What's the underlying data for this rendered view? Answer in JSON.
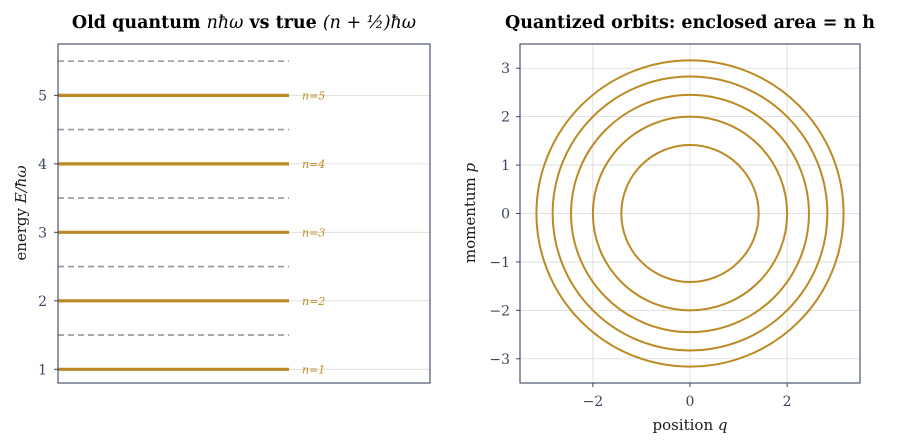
{
  "colors": {
    "gold": "#bc8a24",
    "dash": "#969696",
    "spine": "#3b4560"
  },
  "chart_data": [
    {
      "type": "line",
      "title": "Old quantum nħω vs true (n + ½)ħω",
      "title_text": "Old quantum ",
      "title_math_1": "nħω",
      "title_vs": " vs true ",
      "title_math_2": "(n + ½)ħω",
      "ylabel": "energy",
      "ylabel_math": "E/ħω",
      "xlabel": "",
      "ylim": [
        0.8,
        5.75
      ],
      "yticks": [
        "1",
        "2",
        "3",
        "4",
        "5"
      ],
      "grid": "horizontal",
      "old_quantum_levels": [
        1,
        2,
        3,
        4,
        5
      ],
      "level_labels": [
        "n=1",
        "n=2",
        "n=3",
        "n=4",
        "n=5"
      ],
      "true_levels": [
        1.5,
        2.5,
        3.5,
        4.5,
        5.5
      ]
    },
    {
      "type": "line",
      "title": "Quantized orbits: enclosed area = n h",
      "xlabel": "position",
      "xlabel_math": "q",
      "ylabel": "momentum",
      "ylabel_math": "p",
      "xlim": [
        -3.5,
        3.5
      ],
      "ylim": [
        -3.5,
        3.5
      ],
      "xticks": [
        "−2",
        "0",
        "2"
      ],
      "yticks": [
        "−3",
        "−2",
        "−1",
        "0",
        "1",
        "2",
        "3"
      ],
      "grid": "both",
      "orbit_radii": [
        1.414,
        2.0,
        2.449,
        2.828,
        3.162
      ]
    }
  ]
}
